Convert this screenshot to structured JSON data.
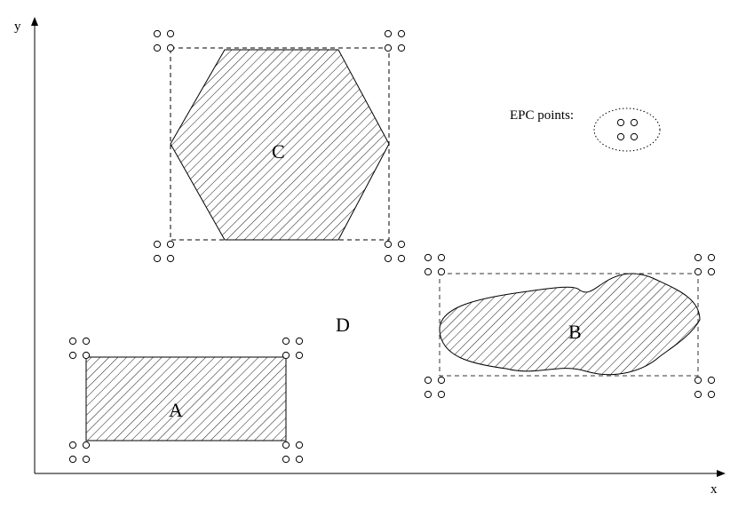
{
  "axes": {
    "x_label": "x",
    "y_label": "y"
  },
  "regions": {
    "a": {
      "label": "A"
    },
    "b": {
      "label": "B"
    },
    "c": {
      "label": "C"
    },
    "d": {
      "label": "D"
    }
  },
  "legend": {
    "text": "EPC points:"
  }
}
